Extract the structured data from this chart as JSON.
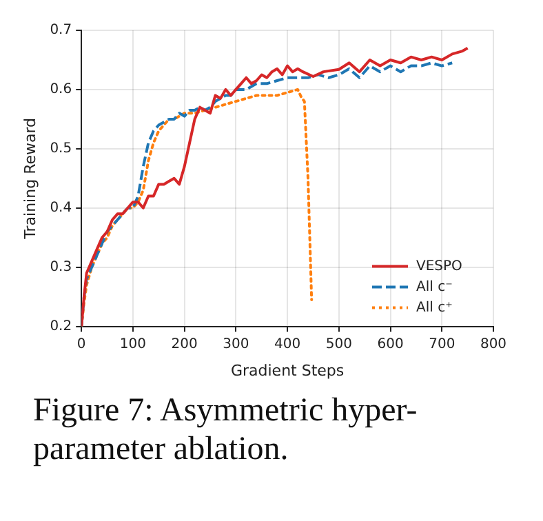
{
  "chart_data": {
    "type": "line",
    "xlabel": "Gradient Steps",
    "ylabel": "Training Reward",
    "xlim": [
      0,
      800
    ],
    "xticks": [
      0,
      100,
      200,
      300,
      400,
      500,
      600,
      700,
      800
    ],
    "ylim": [
      0.2,
      0.7
    ],
    "yticks": [
      0.2,
      0.3,
      0.4,
      0.5,
      0.6,
      0.7
    ],
    "grid": true,
    "legend": "bottom right",
    "marker": "none",
    "annotations": [
      "Figure 7: Asymmetric hyper-parameter ablation."
    ],
    "series": [
      {
        "name": "VESPO",
        "color": "#d62728",
        "line_style": "solid",
        "x": [
          0,
          5,
          10,
          20,
          30,
          40,
          50,
          60,
          70,
          80,
          90,
          100,
          110,
          120,
          130,
          140,
          150,
          160,
          170,
          180,
          190,
          200,
          210,
          220,
          230,
          240,
          250,
          260,
          270,
          280,
          290,
          300,
          310,
          320,
          330,
          340,
          350,
          360,
          370,
          380,
          390,
          400,
          410,
          420,
          430,
          450,
          470,
          500,
          520,
          540,
          560,
          580,
          600,
          620,
          640,
          660,
          680,
          700,
          720,
          740,
          750
        ],
        "values": [
          0.2,
          0.25,
          0.29,
          0.31,
          0.33,
          0.35,
          0.36,
          0.38,
          0.39,
          0.39,
          0.4,
          0.41,
          0.41,
          0.4,
          0.42,
          0.42,
          0.44,
          0.44,
          0.445,
          0.45,
          0.44,
          0.47,
          0.51,
          0.55,
          0.57,
          0.565,
          0.56,
          0.59,
          0.585,
          0.6,
          0.59,
          0.6,
          0.61,
          0.62,
          0.61,
          0.615,
          0.625,
          0.62,
          0.63,
          0.635,
          0.625,
          0.64,
          0.63,
          0.635,
          0.63,
          0.622,
          0.63,
          0.634,
          0.645,
          0.63,
          0.65,
          0.64,
          0.65,
          0.645,
          0.655,
          0.65,
          0.655,
          0.65,
          0.66,
          0.665,
          0.67
        ]
      },
      {
        "name": "All c⁻",
        "color": "#1f77b4",
        "line_style": "dashed",
        "x": [
          0,
          5,
          10,
          20,
          30,
          40,
          50,
          60,
          70,
          80,
          90,
          100,
          110,
          120,
          130,
          140,
          150,
          160,
          170,
          180,
          190,
          200,
          210,
          220,
          230,
          240,
          250,
          260,
          270,
          280,
          290,
          300,
          320,
          340,
          360,
          380,
          400,
          420,
          440,
          460,
          480,
          500,
          520,
          540,
          560,
          580,
          600,
          620,
          640,
          660,
          680,
          700,
          720
        ],
        "values": [
          0.2,
          0.25,
          0.28,
          0.3,
          0.32,
          0.34,
          0.36,
          0.37,
          0.38,
          0.39,
          0.4,
          0.4,
          0.42,
          0.47,
          0.51,
          0.53,
          0.54,
          0.545,
          0.55,
          0.55,
          0.56,
          0.555,
          0.565,
          0.565,
          0.57,
          0.565,
          0.57,
          0.58,
          0.585,
          0.59,
          0.59,
          0.6,
          0.6,
          0.61,
          0.61,
          0.615,
          0.62,
          0.62,
          0.62,
          0.625,
          0.62,
          0.625,
          0.635,
          0.62,
          0.64,
          0.63,
          0.64,
          0.63,
          0.64,
          0.64,
          0.645,
          0.64,
          0.645
        ]
      },
      {
        "name": "All c⁺",
        "color": "#ff7f0e",
        "line_style": "dotted",
        "x": [
          0,
          5,
          10,
          20,
          30,
          40,
          50,
          60,
          70,
          80,
          90,
          100,
          110,
          120,
          130,
          140,
          150,
          160,
          170,
          180,
          190,
          200,
          220,
          240,
          260,
          280,
          300,
          320,
          340,
          360,
          380,
          400,
          420,
          427,
          433,
          440,
          447
        ],
        "values": [
          0.2,
          0.24,
          0.27,
          0.3,
          0.32,
          0.34,
          0.35,
          0.37,
          0.38,
          0.39,
          0.4,
          0.4,
          0.41,
          0.43,
          0.48,
          0.51,
          0.53,
          0.54,
          0.55,
          0.55,
          0.555,
          0.56,
          0.56,
          0.565,
          0.57,
          0.575,
          0.58,
          0.585,
          0.59,
          0.59,
          0.59,
          0.595,
          0.6,
          0.587,
          0.58,
          0.45,
          0.245
        ]
      }
    ]
  }
}
